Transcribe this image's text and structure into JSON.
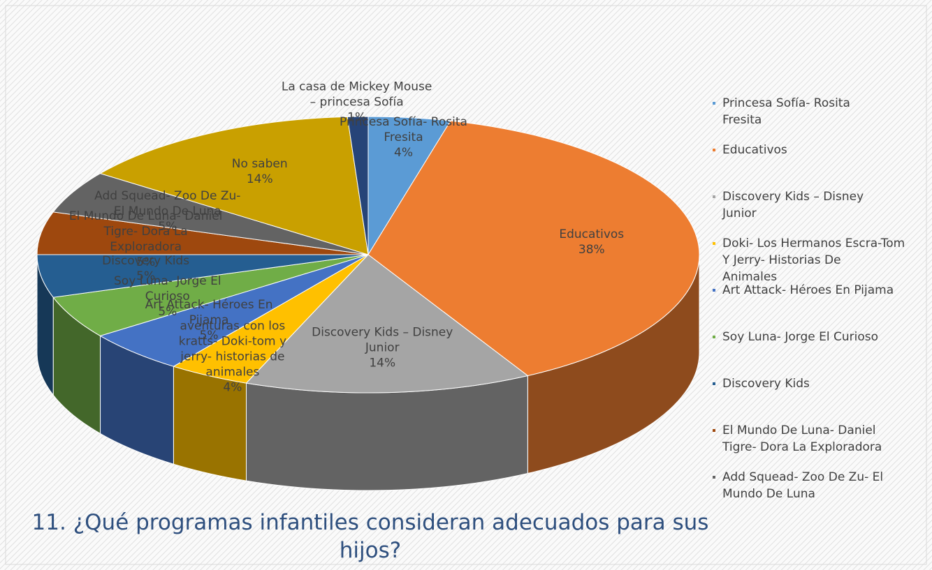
{
  "chart_data": {
    "type": "pie3d",
    "title": "11. ¿Qué programas infantiles consideran adecuados para sus hijos?",
    "categories": [
      "Princesa Sofía- Rosita Fresita",
      "Educativos",
      "Discovery  Kids – Disney Junior",
      "aventuras con los kratts- Doki-tom y jerry- historias de animales",
      "Art Attack- Héroes En Pijama",
      "Soy Luna- Jorge El Curioso",
      "Discovery Kids",
      "El Mundo De Luna- Daniel Tigre- Dora La Exploradora",
      "Add Squead- Zoo De Zu- El Mundo De Luna",
      "No saben",
      "La casa de Mickey Mouse – princesa Sofía"
    ],
    "values": [
      4,
      38,
      14,
      4,
      5,
      5,
      5,
      5,
      5,
      14,
      1
    ],
    "value_labels": [
      "4%",
      "38%",
      "14%",
      "4%",
      "5%",
      "5%",
      "5%",
      "5%",
      "5%",
      "14%",
      "1%"
    ],
    "colors": [
      "#5b9bd5",
      "#ed7d31",
      "#a5a5a5",
      "#ffc000",
      "#4472c4",
      "#70ad47",
      "#255e91",
      "#9e480e",
      "#636363",
      "#c9a000",
      "#264478"
    ],
    "legend_entries": [
      "Princesa Sofía- Rosita Fresita",
      "Educativos",
      "Discovery  Kids – Disney Junior",
      "Doki- Los Hermanos Escra-Tom Y Jerry- Historias De Animales",
      "Art Attack- Héroes En Pijama",
      "Soy Luna- Jorge El Curioso",
      "Discovery Kids",
      "El Mundo De Luna- Daniel Tigre- Dora La Exploradora",
      "Add Squead- Zoo De Zu- El Mundo De Luna"
    ]
  }
}
